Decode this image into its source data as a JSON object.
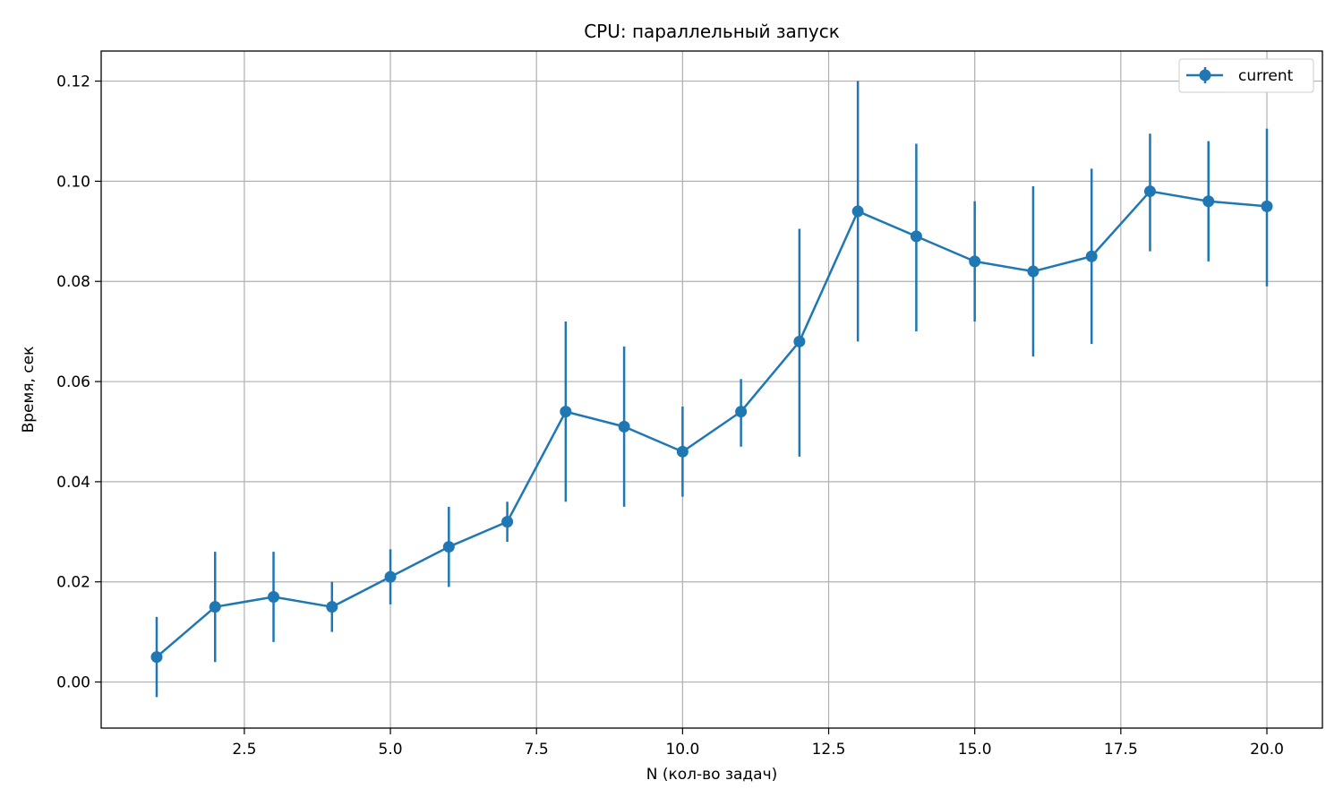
{
  "chart_data": {
    "type": "line",
    "title": "CPU: параллельный запуск",
    "xlabel": "N (кол-во задач)",
    "ylabel": "Время, сек",
    "xlim": [
      0.05,
      20.95
    ],
    "ylim": [
      -0.0092,
      0.126
    ],
    "x_ticks": [
      2.5,
      5.0,
      7.5,
      10.0,
      12.5,
      15.0,
      17.5,
      20.0
    ],
    "x_tick_labels": [
      "2.5",
      "5.0",
      "7.5",
      "10.0",
      "12.5",
      "15.0",
      "17.5",
      "20.0"
    ],
    "y_ticks": [
      0.0,
      0.02,
      0.04,
      0.06,
      0.08,
      0.1,
      0.12
    ],
    "y_tick_labels": [
      "0.00",
      "0.02",
      "0.04",
      "0.06",
      "0.08",
      "0.10",
      "0.12"
    ],
    "grid": true,
    "legend_position": "top-right",
    "series": [
      {
        "name": "current",
        "color": "#1f77b4",
        "marker": "circle",
        "errorbars": true,
        "x": [
          1,
          2,
          3,
          4,
          5,
          6,
          7,
          8,
          9,
          10,
          11,
          12,
          13,
          14,
          15,
          16,
          17,
          18,
          19,
          20
        ],
        "y": [
          0.005,
          0.015,
          0.017,
          0.015,
          0.021,
          0.027,
          0.032,
          0.054,
          0.051,
          0.046,
          0.054,
          0.068,
          0.094,
          0.089,
          0.084,
          0.082,
          0.085,
          0.098,
          0.096,
          0.095
        ],
        "err_low": [
          -0.003,
          0.004,
          0.008,
          0.01,
          0.0155,
          0.019,
          0.028,
          0.036,
          0.035,
          0.037,
          0.047,
          0.045,
          0.068,
          0.07,
          0.072,
          0.065,
          0.0675,
          0.086,
          0.084,
          0.079
        ],
        "err_high": [
          0.013,
          0.026,
          0.026,
          0.02,
          0.0265,
          0.035,
          0.036,
          0.072,
          0.067,
          0.055,
          0.0605,
          0.0905,
          0.12,
          0.1075,
          0.096,
          0.099,
          0.1025,
          0.1095,
          0.108,
          0.1105
        ]
      }
    ]
  }
}
